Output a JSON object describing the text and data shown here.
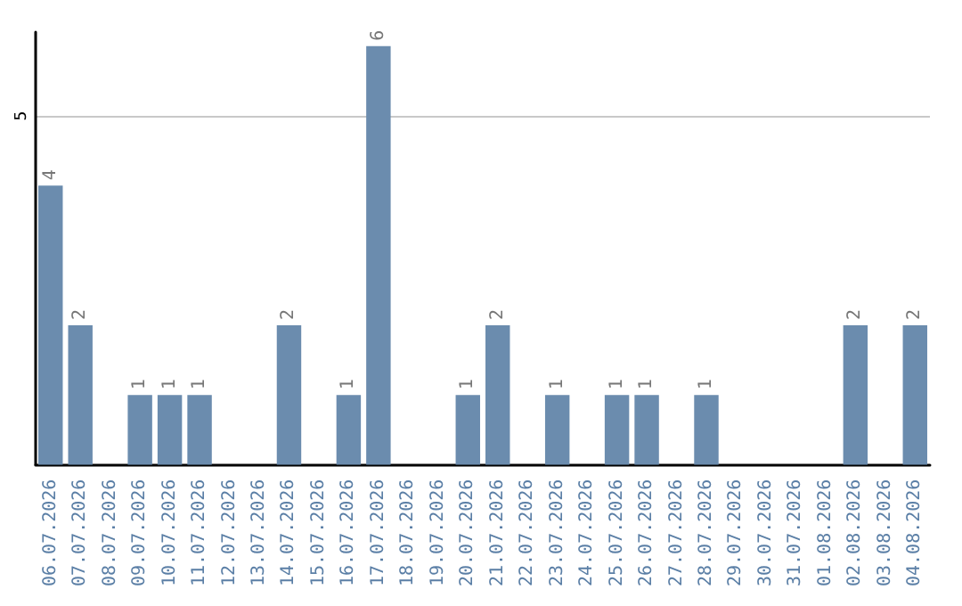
{
  "chart_data": {
    "type": "bar",
    "categories": [
      "06.07.2026",
      "07.07.2026",
      "08.07.2026",
      "09.07.2026",
      "10.07.2026",
      "11.07.2026",
      "12.07.2026",
      "13.07.2026",
      "14.07.2026",
      "15.07.2026",
      "16.07.2026",
      "17.07.2026",
      "18.07.2026",
      "19.07.2026",
      "20.07.2026",
      "21.07.2026",
      "22.07.2026",
      "23.07.2026",
      "24.07.2026",
      "25.07.2026",
      "26.07.2026",
      "27.07.2026",
      "28.07.2026",
      "29.07.2026",
      "30.07.2026",
      "31.07.2026",
      "01.08.2026",
      "02.08.2026",
      "03.08.2026",
      "04.08.2026"
    ],
    "values": [
      4,
      2,
      0,
      1,
      1,
      1,
      0,
      0,
      2,
      0,
      1,
      6,
      0,
      0,
      1,
      2,
      0,
      1,
      0,
      1,
      1,
      0,
      1,
      0,
      0,
      0,
      0,
      2,
      0,
      2
    ],
    "value_labels": [
      "4",
      "2",
      null,
      "1",
      "1",
      "1",
      null,
      null,
      "2",
      null,
      "1",
      "6",
      null,
      null,
      "1",
      "2",
      null,
      "1",
      null,
      "1",
      "1",
      null,
      "1",
      null,
      null,
      null,
      null,
      "2",
      null,
      "2"
    ],
    "color": "#6b8cae",
    "ylim": [
      0,
      6.2
    ],
    "yticks": [
      5
    ],
    "grid": "y"
  }
}
